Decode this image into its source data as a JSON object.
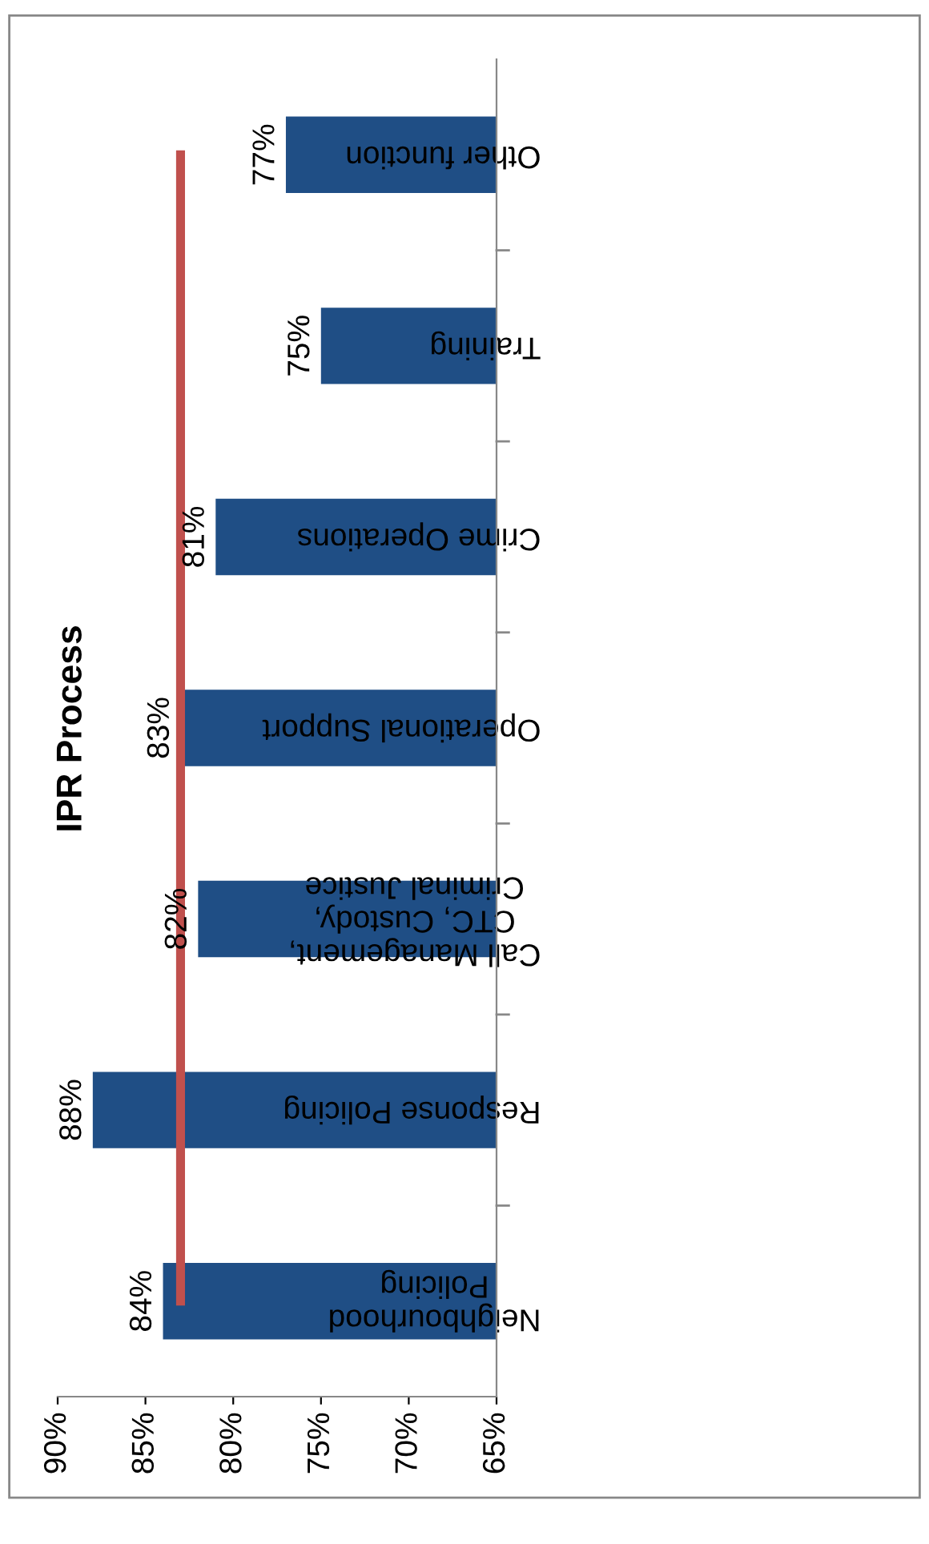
{
  "chart_data": {
    "type": "bar",
    "title": "IPR Process",
    "orientation": "horizontal",
    "categories": [
      "Other function",
      "Training",
      "Crime Operations",
      "Operational Support",
      "Call Management,\nCTC, Custody,\nCriminal Justice",
      "Response Policing",
      "Neighbourhood\nPolicing"
    ],
    "series": [
      {
        "color": "#1f4e85",
        "values": [
          77,
          75,
          81,
          83,
          82,
          88,
          84
        ],
        "value_labels": [
          "77%",
          "75%",
          "81%",
          "83%",
          "82%",
          "88%",
          "84%"
        ]
      },
      {
        "type": "line",
        "color": "#c0504d",
        "values": [
          83,
          83,
          83,
          83,
          83,
          83,
          83
        ]
      }
    ],
    "xlim": [
      90,
      65
    ],
    "xticks": [
      {
        "value": 90,
        "label": "90%"
      },
      {
        "value": 85,
        "label": "85%"
      },
      {
        "value": 80,
        "label": "80%"
      },
      {
        "value": 75,
        "label": "75%"
      },
      {
        "value": 70,
        "label": "70%"
      },
      {
        "value": 65,
        "label": "65%"
      }
    ],
    "grid": false,
    "legend": false
  }
}
